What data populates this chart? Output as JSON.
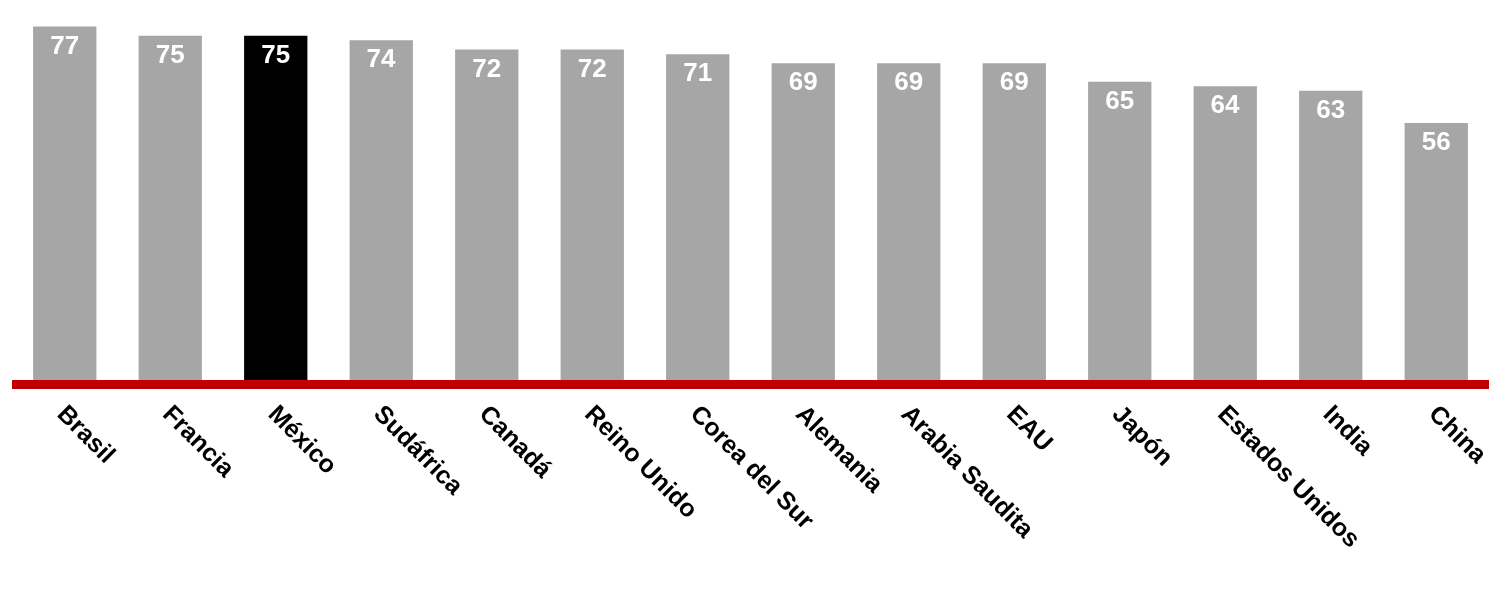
{
  "chart_data": {
    "type": "bar",
    "categories": [
      "Brasil",
      "Francia",
      "México",
      "Sudáfrica",
      "Canadá",
      "Reino Unido",
      "Corea del Sur",
      "Alemania",
      "Arabia Saudita",
      "EAU",
      "Japón",
      "Estados Unidos",
      "India",
      "China"
    ],
    "values": [
      77,
      75,
      75,
      74,
      72,
      72,
      71,
      69,
      69,
      69,
      65,
      64,
      63,
      56
    ],
    "colors": [
      "#a6a6a6",
      "#a6a6a6",
      "#000000",
      "#a6a6a6",
      "#a6a6a6",
      "#a6a6a6",
      "#a6a6a6",
      "#a6a6a6",
      "#a6a6a6",
      "#a6a6a6",
      "#a6a6a6",
      "#a6a6a6",
      "#a6a6a6",
      "#a6a6a6"
    ],
    "data_labels": true
  }
}
